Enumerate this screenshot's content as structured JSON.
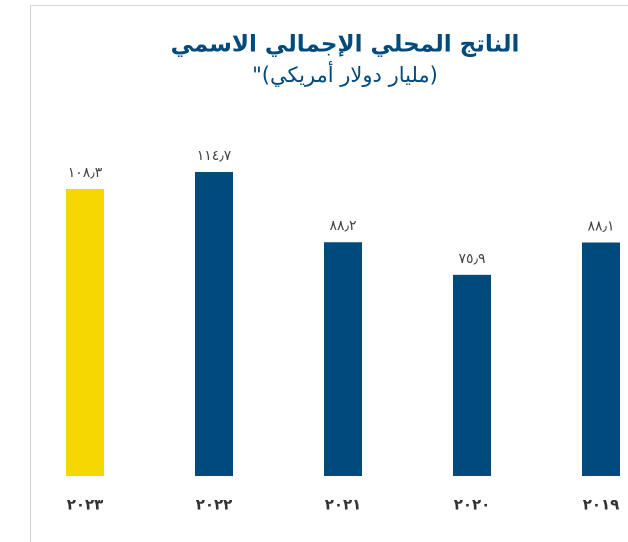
{
  "chart_data": {
    "type": "bar",
    "title": "الناتج المحلي الإجمالي الاسمي",
    "subtitle": "(مليار دولار أمريكي)\"",
    "categories": [
      "٢٠٢٣",
      "٢٠٢٢",
      "٢٠٢١",
      "٢٠٢٠",
      "٢٠١٩"
    ],
    "values": [
      108.3,
      114.7,
      88.2,
      75.9,
      88.1
    ],
    "value_labels": [
      "١٠٨٫٣",
      "١١٤٫٧",
      "٨٨٫٢",
      "٧٥٫٩",
      "٨٨٫١"
    ],
    "colors": [
      "#f5d800",
      "#004a7c",
      "#004a7c",
      "#004a7c",
      "#004a7c"
    ]
  }
}
